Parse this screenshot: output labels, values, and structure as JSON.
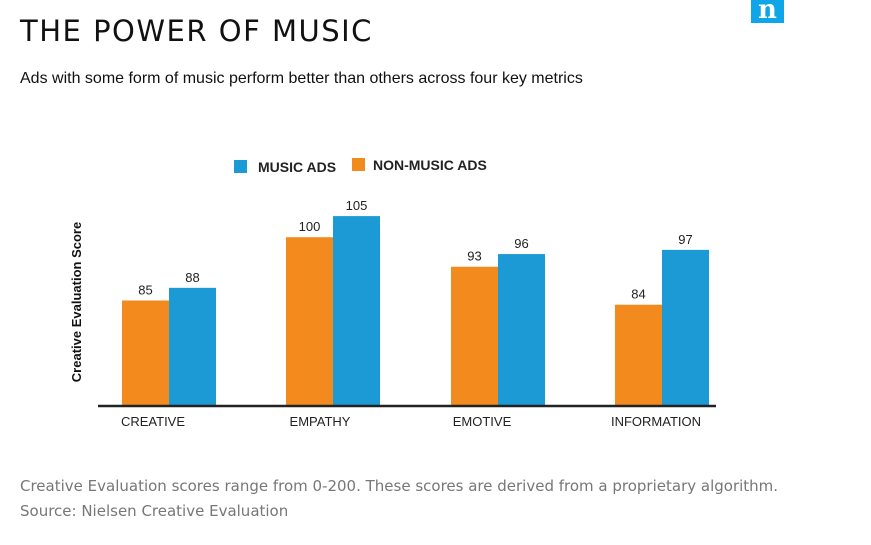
{
  "header": {
    "title": "THE POWER OF MUSIC",
    "subtitle": "Ads with some form of music perform better than others across four key metrics",
    "logo_text": "n"
  },
  "footer": {
    "note": "Creative Evaluation scores range from 0-200. These scores are derived from a proprietary algorithm.",
    "source": "Source:  Nielsen Creative Evaluation"
  },
  "colors": {
    "music": "#1b9ad6",
    "non_music": "#f28a1e",
    "brand": "#0ea5e9"
  },
  "chart_data": {
    "type": "bar",
    "title": "",
    "ylabel": "Creative Evaluation Score",
    "xlabel": "",
    "categories": [
      "CREATIVE",
      "EMPATHY",
      "EMOTIVE",
      "INFORMATION"
    ],
    "series": [
      {
        "name": "NON-MUSIC ADS",
        "values": [
          85,
          100,
          93,
          84
        ],
        "color": "#f28a1e"
      },
      {
        "name": "MUSIC ADS",
        "values": [
          88,
          105,
          96,
          97
        ],
        "color": "#1b9ad6"
      }
    ],
    "legend_order": [
      "MUSIC ADS",
      "NON-MUSIC ADS"
    ],
    "legend_position": "top",
    "ylim": [
      60,
      110
    ],
    "grid": false,
    "data_labels": true
  }
}
